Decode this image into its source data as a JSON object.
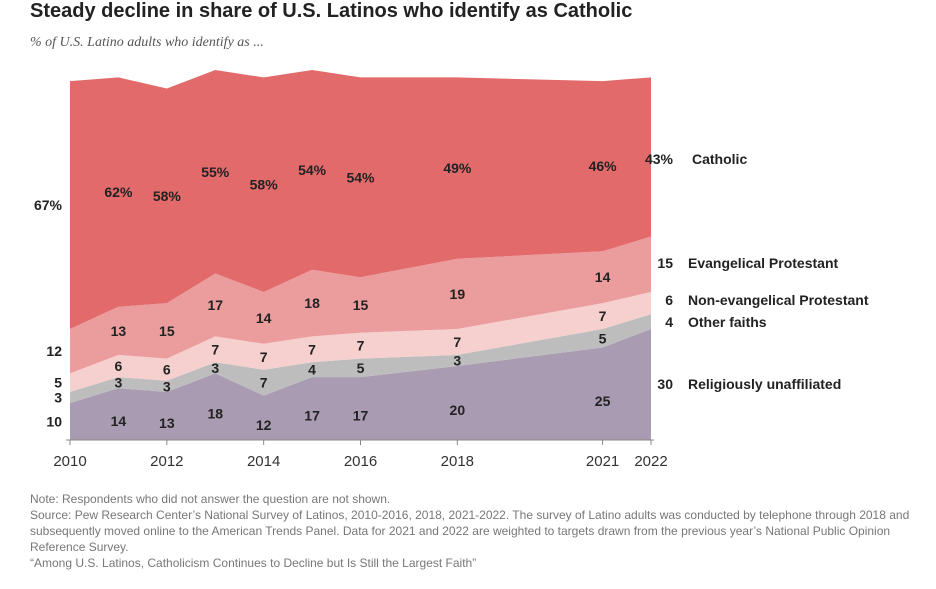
{
  "title": "Steady decline in share of U.S. Latinos who identify as Catholic",
  "subtitle": "% of U.S. Latino adults who identify as ...",
  "chart_data": {
    "type": "area",
    "stacked": true,
    "x": [
      2010,
      2011,
      2012,
      2013,
      2014,
      2015,
      2016,
      2018,
      2021,
      2022
    ],
    "x_ticks": [
      "2010",
      "2012",
      "2014",
      "2016",
      "2018",
      "2021",
      "2022"
    ],
    "series": [
      {
        "name": "Religiously unaffiliated",
        "values": [
          10,
          14,
          13,
          18,
          12,
          17,
          17,
          20,
          25,
          30
        ],
        "color": "#a99bb1",
        "labels": [
          "10",
          "14",
          "13",
          "18",
          "12",
          "17",
          "17",
          "20",
          "25",
          "30"
        ]
      },
      {
        "name": "Other faiths",
        "values": [
          3,
          3,
          3,
          3,
          7,
          4,
          5,
          3,
          5,
          4
        ],
        "color": "#bdbdbd",
        "labels": [
          "3",
          "3",
          "3",
          "3",
          "7",
          "4",
          "5",
          "3",
          "5",
          "4"
        ]
      },
      {
        "name": "Non-evangelical Protestant",
        "values": [
          5,
          6,
          6,
          7,
          7,
          7,
          7,
          7,
          7,
          6
        ],
        "color": "#f6cfcf",
        "labels": [
          "5",
          "6",
          "6",
          "7",
          "7",
          "7",
          "7",
          "7",
          "7",
          "6"
        ]
      },
      {
        "name": "Evangelical Protestant",
        "values": [
          12,
          13,
          15,
          17,
          14,
          18,
          15,
          19,
          14,
          15
        ],
        "color": "#eb9c9c",
        "labels": [
          "12",
          "13",
          "15",
          "17",
          "14",
          "18",
          "15",
          "19",
          "14",
          "15"
        ]
      },
      {
        "name": "Catholic",
        "values": [
          67,
          62,
          58,
          55,
          58,
          54,
          54,
          49,
          46,
          43
        ],
        "color": "#e26a6b",
        "labels": [
          "67%",
          "62%",
          "58%",
          "55%",
          "58%",
          "54%",
          "54%",
          "49%",
          "46%",
          "43%"
        ]
      }
    ],
    "end_labels": [
      {
        "value": "43%",
        "name": "Catholic"
      },
      {
        "value": "15",
        "name": "Evangelical Protestant"
      },
      {
        "value": "6",
        "name": "Non-evangelical Protestant"
      },
      {
        "value": "4",
        "name": "Other faiths"
      },
      {
        "value": "30",
        "name": "Religiously unaffiliated"
      }
    ]
  },
  "notes": {
    "note": "Note: Respondents who did not answer the question are not shown.",
    "source": "Source: Pew Research Center’s National Survey of Latinos, 2010-2016, 2018, 2021-2022. The survey of Latino adults was conducted by telephone through 2018 and subsequently moved online to the American Trends Panel. Data for 2021 and 2022 are weighted to targets drawn from the previous year’s National Public Opinion Reference Survey.",
    "report": "“Among U.S. Latinos, Catholicism Continues to Decline but Is Still the Largest Faith”"
  }
}
